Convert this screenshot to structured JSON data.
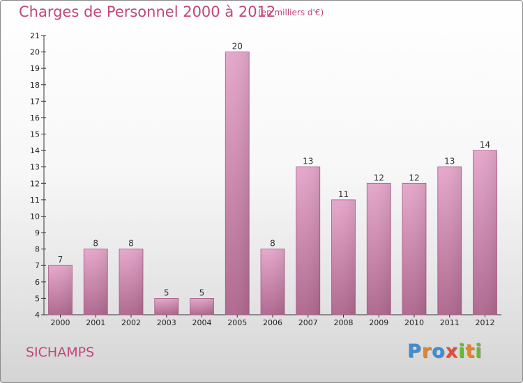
{
  "header": {
    "title": "Charges de Personnel 2000 à 2012",
    "subtitle": "(en milliers d'€)"
  },
  "footer": {
    "city": "SICHAMPS",
    "logo_letters": [
      {
        "char": "P",
        "color": "#3a8fd6"
      },
      {
        "char": "r",
        "color": "#e8822a"
      },
      {
        "char": "o",
        "color": "#3a8fd6"
      },
      {
        "char": "x",
        "color": "#e84a3a"
      },
      {
        "char": "i",
        "color": "#6ab832"
      },
      {
        "char": "t",
        "color": "#e8822a"
      },
      {
        "char": "i",
        "color": "#6ab832"
      }
    ]
  },
  "chart_data": {
    "type": "bar",
    "title": "Charges de Personnel 2000 à 2012",
    "subtitle": "(en milliers d'€)",
    "categories": [
      "2000",
      "2001",
      "2002",
      "2003",
      "2004",
      "2005",
      "2006",
      "2007",
      "2008",
      "2009",
      "2010",
      "2011",
      "2012"
    ],
    "values": [
      7,
      8,
      8,
      5,
      5,
      20,
      8,
      13,
      11,
      12,
      12,
      13,
      14
    ],
    "ylim": [
      4,
      21
    ],
    "yticks": [
      4,
      5,
      6,
      7,
      8,
      9,
      10,
      11,
      12,
      13,
      14,
      15,
      16,
      17,
      18,
      19,
      20,
      21
    ],
    "grid": false,
    "data_labels": true,
    "bar_color": "#d98ab3"
  }
}
